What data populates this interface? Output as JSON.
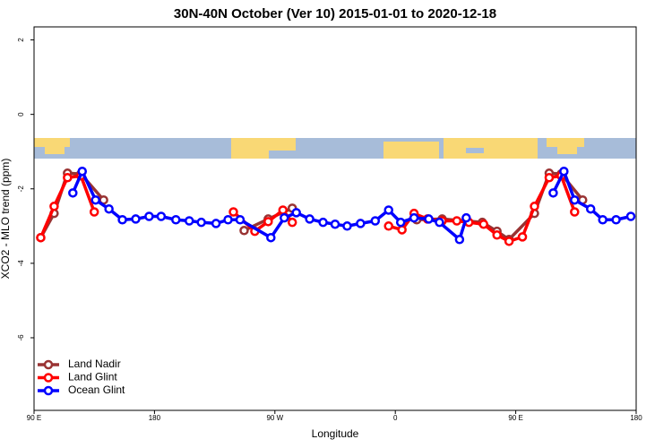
{
  "chart_data": {
    "type": "line",
    "title": "30N-40N October (Ver 10)   2015-01-01 to 2020-12-18",
    "x_label": "Longitude",
    "y_label": "XCO2 - MLO trend (ppm)",
    "xlim": [
      90,
      540
    ],
    "ylim": [
      -7.95,
      2.35
    ],
    "xticks": [
      {
        "value": 90,
        "label": "90 E"
      },
      180,
      {
        "value": 270,
        "label": "90 W"
      },
      {
        "value": 360,
        "label": "0"
      },
      {
        "value": 450,
        "label": "90 E"
      },
      {
        "value": 540,
        "label": "180"
      }
    ],
    "yticks": [
      2,
      0,
      -2,
      -4,
      -6
    ],
    "legend": "lower left",
    "series": [
      {
        "name": "Land Nadir",
        "color": "#993333",
        "x": [
          95,
          105,
          115,
          125,
          142,
          190,
          247,
          265,
          283,
          330,
          376,
          395,
          425,
          436,
          445,
          464,
          475,
          484,
          500
        ],
        "values": [
          -3.31,
          -2.66,
          -1.58,
          -1.6,
          -2.3,
          null,
          -3.12,
          -2.81,
          -2.52,
          null,
          -2.83,
          -2.81,
          -2.9,
          -3.14,
          -3.36,
          -2.66,
          -1.58,
          -1.6,
          -2.3
        ]
      },
      {
        "name": "Land Glint",
        "color": "#ff0000",
        "x": [
          95,
          105,
          115,
          125,
          135,
          190,
          239,
          255,
          265,
          276,
          283,
          320,
          355,
          365,
          374,
          384,
          395,
          406,
          415,
          426,
          436,
          445,
          455,
          464,
          475,
          484,
          494
        ],
        "values": [
          -3.31,
          -2.47,
          -1.7,
          -1.65,
          -2.62,
          null,
          -2.62,
          -3.14,
          -2.88,
          -2.57,
          -2.9,
          null,
          -3.0,
          -3.1,
          -2.66,
          -2.81,
          -2.86,
          -2.86,
          -2.9,
          -2.95,
          -3.24,
          -3.41,
          -3.29,
          -2.47,
          -1.7,
          -1.65,
          -2.62
        ]
      },
      {
        "name": "Ocean Glint",
        "color": "#0000ff",
        "x": [
          119,
          126,
          136,
          146,
          156,
          166,
          176,
          185,
          196,
          206,
          215,
          226,
          235,
          244,
          267,
          277,
          286,
          296,
          306,
          315,
          324,
          334,
          345,
          355,
          364,
          374,
          385,
          393,
          408,
          413,
          445,
          478,
          486,
          494,
          506,
          515,
          525,
          536
        ],
        "values": [
          -2.11,
          -1.53,
          -2.3,
          -2.54,
          -2.83,
          -2.81,
          -2.74,
          -2.74,
          -2.83,
          -2.86,
          -2.9,
          -2.93,
          -2.83,
          -2.83,
          -3.31,
          -2.78,
          -2.64,
          -2.81,
          -2.9,
          -2.95,
          -3.0,
          -2.93,
          -2.86,
          -2.57,
          -2.9,
          -2.78,
          -2.81,
          -2.9,
          -3.36,
          -2.78,
          null,
          -2.11,
          -1.53,
          -2.3,
          -2.54,
          -2.83,
          -2.83,
          -2.74
        ]
      }
    ]
  }
}
